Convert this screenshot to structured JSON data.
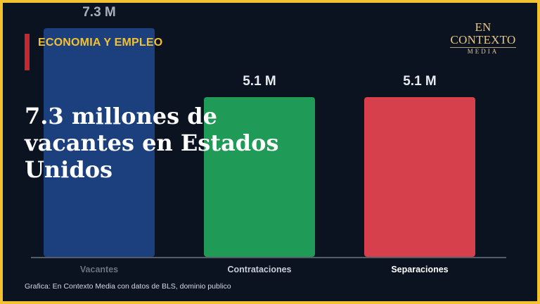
{
  "section_label": "ECONOMIA Y EMPLEO",
  "headline": "7.3 millones de vacantes en Estados Unidos",
  "logo": {
    "line1": "EN CONTEXTO",
    "line2": "MEDIA"
  },
  "credit": "Grafica: En Contexto Media con datos de BLS, dominio publico",
  "colors": {
    "frame": "#f2c230",
    "background": "#0b1220",
    "accent": "#c4292f"
  },
  "chart_data": {
    "type": "bar",
    "categories": [
      "Vacantes",
      "Contrataciones",
      "Separaciones"
    ],
    "values": [
      7.3,
      5.1,
      5.1
    ],
    "data_labels": [
      "7.3 M",
      "5.1 M",
      "5.1 M"
    ],
    "colors": [
      "#1c3f7e",
      "#1f9a57",
      "#d5404c"
    ],
    "ylim": [
      0,
      7.3
    ],
    "grid": false,
    "title": "",
    "xlabel": "",
    "ylabel": ""
  }
}
